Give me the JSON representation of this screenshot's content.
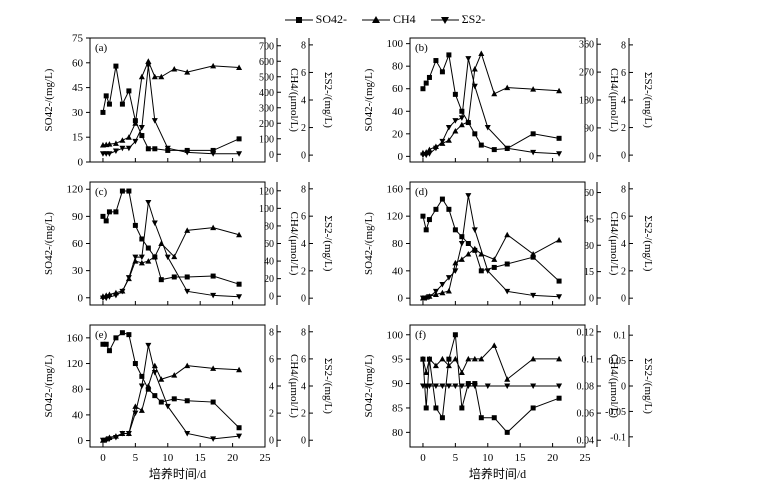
{
  "legend": {
    "so4": "SO42-",
    "ch4": "CH4",
    "s2": "ΣS2-"
  },
  "x_label": "培养时间/d",
  "chart_data": [
    {
      "panel": "(a)",
      "type": "line",
      "x_ticks": [
        0,
        5,
        10,
        15,
        20,
        25
      ],
      "y_left": {
        "label": "SO42-/(mg/L)",
        "range": [
          0,
          75
        ],
        "ticks": [
          0,
          15,
          30,
          45,
          60,
          75
        ]
      },
      "y_ch4": {
        "label": "CH4/(μmol/L)",
        "range": [
          -50,
          750
        ],
        "ticks": [
          0,
          100,
          200,
          300,
          400,
          500,
          600,
          700
        ]
      },
      "y_s": {
        "label": "ΣS2-/(mg/L)",
        "range": [
          -0.5,
          8.5
        ],
        "ticks": [
          0,
          2,
          4,
          6,
          8
        ]
      },
      "series": [
        {
          "name": "SO42-",
          "axis": "left",
          "x": [
            0,
            0.5,
            1,
            2,
            3,
            4,
            5,
            6,
            7,
            8,
            10,
            13,
            17,
            21
          ],
          "y": [
            30,
            40,
            35,
            58,
            35,
            43,
            25,
            16,
            8,
            8,
            7,
            7,
            7,
            14
          ]
        },
        {
          "name": "CH4",
          "axis": "ch4",
          "x": [
            0,
            0.5,
            1,
            2,
            3,
            4,
            5,
            6,
            7,
            8,
            9,
            11,
            13,
            17,
            21
          ],
          "y": [
            60,
            62,
            65,
            70,
            90,
            110,
            200,
            500,
            600,
            500,
            500,
            550,
            530,
            570,
            560
          ]
        },
        {
          "name": "ΣS2-",
          "axis": "s",
          "x": [
            0,
            0.5,
            1,
            2,
            3,
            4,
            5,
            6,
            7,
            8,
            10,
            13,
            17,
            21
          ],
          "y": [
            0.1,
            0.1,
            0.1,
            0.3,
            0.5,
            0.5,
            1.0,
            2.0,
            6.5,
            2.5,
            0.5,
            0.2,
            0.1,
            0.1
          ]
        }
      ]
    },
    {
      "panel": "(b)",
      "type": "line",
      "x_ticks": [
        0,
        5,
        10,
        15,
        20,
        25
      ],
      "y_left": {
        "label": "SO42-/(mg/L)",
        "range": [
          -5,
          105
        ],
        "ticks": [
          0,
          20,
          40,
          60,
          80,
          100
        ]
      },
      "y_ch4": {
        "label": "CH4/(μmol/L)",
        "range": [
          -20,
          380
        ],
        "ticks": [
          0,
          90,
          180,
          270,
          360
        ]
      },
      "y_s": {
        "label": "ΣS2-/(mg/L)",
        "range": [
          -0.5,
          8.5
        ],
        "ticks": [
          0,
          2,
          4,
          6,
          8
        ]
      },
      "series": [
        {
          "name": "SO42-",
          "axis": "left",
          "x": [
            0,
            0.5,
            1,
            2,
            3,
            4,
            5,
            6,
            7,
            8,
            9,
            11,
            13,
            17,
            21
          ],
          "y": [
            60,
            65,
            70,
            85,
            75,
            90,
            55,
            40,
            30,
            20,
            10,
            6,
            7,
            20,
            16
          ]
        },
        {
          "name": "CH4",
          "axis": "ch4",
          "x": [
            0,
            0.5,
            1,
            2,
            3,
            4,
            5,
            6,
            7,
            8,
            9,
            11,
            13,
            17,
            21
          ],
          "y": [
            10,
            12,
            20,
            30,
            40,
            50,
            80,
            100,
            110,
            280,
            330,
            200,
            220,
            215,
            210
          ]
        },
        {
          "name": "ΣS2-",
          "axis": "s",
          "x": [
            0,
            0.5,
            1,
            2,
            3,
            4,
            5,
            6,
            7,
            8,
            10,
            13,
            17,
            21
          ],
          "y": [
            0,
            0,
            0.1,
            0.5,
            1.0,
            2.0,
            2.5,
            2.7,
            7.0,
            5.0,
            2.0,
            0.5,
            0.2,
            0.1
          ]
        }
      ]
    },
    {
      "panel": "(c)",
      "type": "line",
      "x_ticks": [
        0,
        5,
        10,
        15,
        20,
        25
      ],
      "y_left": {
        "label": "SO42-/(mg/L)",
        "range": [
          -8,
          128
        ],
        "ticks": [
          0,
          30,
          60,
          90,
          120
        ]
      },
      "y_ch4": {
        "label": "CH4/(μmol/L)",
        "range": [
          -10,
          130
        ],
        "ticks": [
          0,
          20,
          40,
          60,
          80,
          100,
          120
        ]
      },
      "y_s": {
        "label": "ΣS2-/(mg/L)",
        "range": [
          -0.5,
          8.5
        ],
        "ticks": [
          0,
          2,
          4,
          6,
          8
        ]
      },
      "series": [
        {
          "name": "SO42-",
          "axis": "left",
          "x": [
            0,
            0.5,
            1,
            2,
            3,
            4,
            5,
            6,
            7,
            8,
            9,
            11,
            13,
            17,
            21
          ],
          "y": [
            90,
            85,
            95,
            95,
            118,
            118,
            80,
            65,
            55,
            45,
            20,
            23,
            23,
            24,
            15
          ]
        },
        {
          "name": "CH4",
          "axis": "ch4",
          "x": [
            0,
            0.5,
            1,
            2,
            3,
            4,
            5,
            6,
            7,
            8,
            9,
            11,
            13,
            17,
            21
          ],
          "y": [
            0,
            1,
            2,
            4,
            6,
            20,
            40,
            38,
            40,
            45,
            60,
            45,
            75,
            78,
            70
          ]
        },
        {
          "name": "ΣS2-",
          "axis": "s",
          "x": [
            0,
            0.5,
            1,
            2,
            3,
            4,
            5,
            6,
            7,
            8,
            10,
            13,
            17,
            21
          ],
          "y": [
            0,
            0,
            0.1,
            0.2,
            0.5,
            1.5,
            3.0,
            3.0,
            7.0,
            5.5,
            3.0,
            0.5,
            0.2,
            0.1
          ]
        }
      ]
    },
    {
      "panel": "(d)",
      "type": "line",
      "x_ticks": [
        0,
        5,
        10,
        15,
        20,
        25
      ],
      "y_left": {
        "label": "SO42-/(mg/L)",
        "range": [
          -10,
          170
        ],
        "ticks": [
          0,
          40,
          80,
          120,
          160
        ]
      },
      "y_ch4": {
        "label": "CH4/(μmol/L)",
        "range": [
          -4,
          66
        ],
        "ticks": [
          0,
          15,
          30,
          45,
          60
        ]
      },
      "y_s": {
        "label": "ΣS2-/(mg/L)",
        "range": [
          -0.5,
          8.5
        ],
        "ticks": [
          0,
          2,
          4,
          6,
          8
        ]
      },
      "series": [
        {
          "name": "SO42-",
          "axis": "left",
          "x": [
            0,
            0.5,
            1,
            2,
            3,
            4,
            5,
            6,
            7,
            8,
            9,
            11,
            13,
            17,
            21
          ],
          "y": [
            120,
            100,
            115,
            130,
            145,
            130,
            100,
            90,
            80,
            70,
            40,
            45,
            50,
            60,
            25
          ]
        },
        {
          "name": "CH4",
          "axis": "ch4",
          "x": [
            0,
            0.5,
            1,
            2,
            3,
            4,
            5,
            6,
            7,
            8,
            9,
            11,
            13,
            17,
            21
          ],
          "y": [
            0,
            0.5,
            1,
            2,
            3,
            4,
            20,
            22,
            25,
            28,
            25,
            22,
            36,
            25,
            33
          ]
        },
        {
          "name": "ΣS2-",
          "axis": "s",
          "x": [
            0,
            0.5,
            1,
            2,
            3,
            4,
            5,
            6,
            7,
            8,
            10,
            13,
            17,
            21
          ],
          "y": [
            0,
            0,
            0.1,
            0.5,
            1.0,
            1.5,
            2.0,
            4.0,
            7.5,
            5.0,
            2.0,
            0.5,
            0.2,
            0.1
          ]
        }
      ]
    },
    {
      "panel": "(e)",
      "type": "line",
      "x_ticks": [
        0,
        5,
        10,
        15,
        20,
        25
      ],
      "y_left": {
        "label": "SO42-/(mg/L)",
        "range": [
          -10,
          180
        ],
        "ticks": [
          0,
          40,
          80,
          120,
          160
        ]
      },
      "y_ch4": {
        "label": "CH4/(μmol/L)",
        "range": [
          -0.5,
          8.5
        ],
        "ticks": [
          0,
          2,
          4,
          6,
          8
        ]
      },
      "y_s": {
        "label": "ΣS2-/(mg/L)",
        "range": [
          -0.5,
          8.5
        ],
        "ticks": [
          0,
          2,
          4,
          6,
          8
        ]
      },
      "series": [
        {
          "name": "SO42-",
          "axis": "left",
          "x": [
            0,
            0.5,
            1,
            2,
            3,
            4,
            5,
            6,
            7,
            8,
            9,
            11,
            13,
            17,
            21
          ],
          "y": [
            150,
            150,
            140,
            160,
            168,
            165,
            120,
            100,
            80,
            70,
            60,
            65,
            62,
            60,
            20
          ]
        },
        {
          "name": "CH4",
          "axis": "ch4",
          "x": [
            0,
            0.5,
            1,
            2,
            3,
            4,
            5,
            6,
            7,
            8,
            9,
            11,
            13,
            17,
            21
          ],
          "y": [
            0,
            0.1,
            0.2,
            0.3,
            0.5,
            0.5,
            2.5,
            2.2,
            4.0,
            5.5,
            4.5,
            4.8,
            5.5,
            5.3,
            5.2
          ]
        },
        {
          "name": "ΣS2-",
          "axis": "s",
          "x": [
            0,
            0.5,
            1,
            2,
            3,
            4,
            5,
            6,
            7,
            8,
            10,
            13,
            17,
            21
          ],
          "y": [
            0,
            0,
            0.1,
            0.2,
            0.5,
            0.5,
            2.0,
            4.0,
            7.0,
            5.0,
            2.5,
            0.5,
            0.1,
            0.3
          ]
        }
      ]
    },
    {
      "panel": "(f)",
      "type": "line",
      "x_ticks": [
        0,
        5,
        10,
        15,
        20,
        25
      ],
      "y_left": {
        "label": "SO42-/(mg/L)",
        "range": [
          77,
          102
        ],
        "ticks": [
          80,
          85,
          90,
          95,
          100
        ]
      },
      "y_ch4": {
        "label": "CH4/(μmol/L)",
        "range": [
          0.035,
          0.125
        ],
        "ticks": [
          0.04,
          0.06,
          0.08,
          0.1,
          0.12
        ]
      },
      "y_s": {
        "label": "ΣS2-/(mg/L)",
        "range": [
          -0.12,
          0.12
        ],
        "ticks": [
          -0.1,
          -0.05,
          0,
          0.05,
          0.1
        ]
      },
      "series": [
        {
          "name": "SO42-",
          "axis": "left",
          "x": [
            0,
            0.5,
            1,
            2,
            3,
            4,
            5,
            6,
            7,
            8,
            9,
            11,
            13,
            17,
            21
          ],
          "y": [
            95,
            85,
            95,
            85,
            83,
            95,
            100,
            85,
            90,
            90,
            83,
            83,
            80,
            85,
            87
          ]
        },
        {
          "name": "CH4",
          "axis": "ch4",
          "x": [
            0,
            0.5,
            1,
            2,
            3,
            4,
            5,
            6,
            7,
            8,
            9,
            11,
            13,
            17,
            21
          ],
          "y": [
            0.1,
            0.09,
            0.1,
            0.095,
            0.1,
            0.095,
            0.1,
            0.09,
            0.1,
            0.1,
            0.1,
            0.11,
            0.085,
            0.1,
            0.1
          ]
        },
        {
          "name": "ΣS2-",
          "axis": "s",
          "x": [
            0,
            0.5,
            1,
            2,
            3,
            4,
            5,
            6,
            7,
            8,
            10,
            13,
            17,
            21
          ],
          "y": [
            0,
            0,
            0,
            0,
            0,
            0,
            0,
            0,
            0,
            0,
            0,
            0,
            0,
            0
          ]
        }
      ]
    }
  ]
}
